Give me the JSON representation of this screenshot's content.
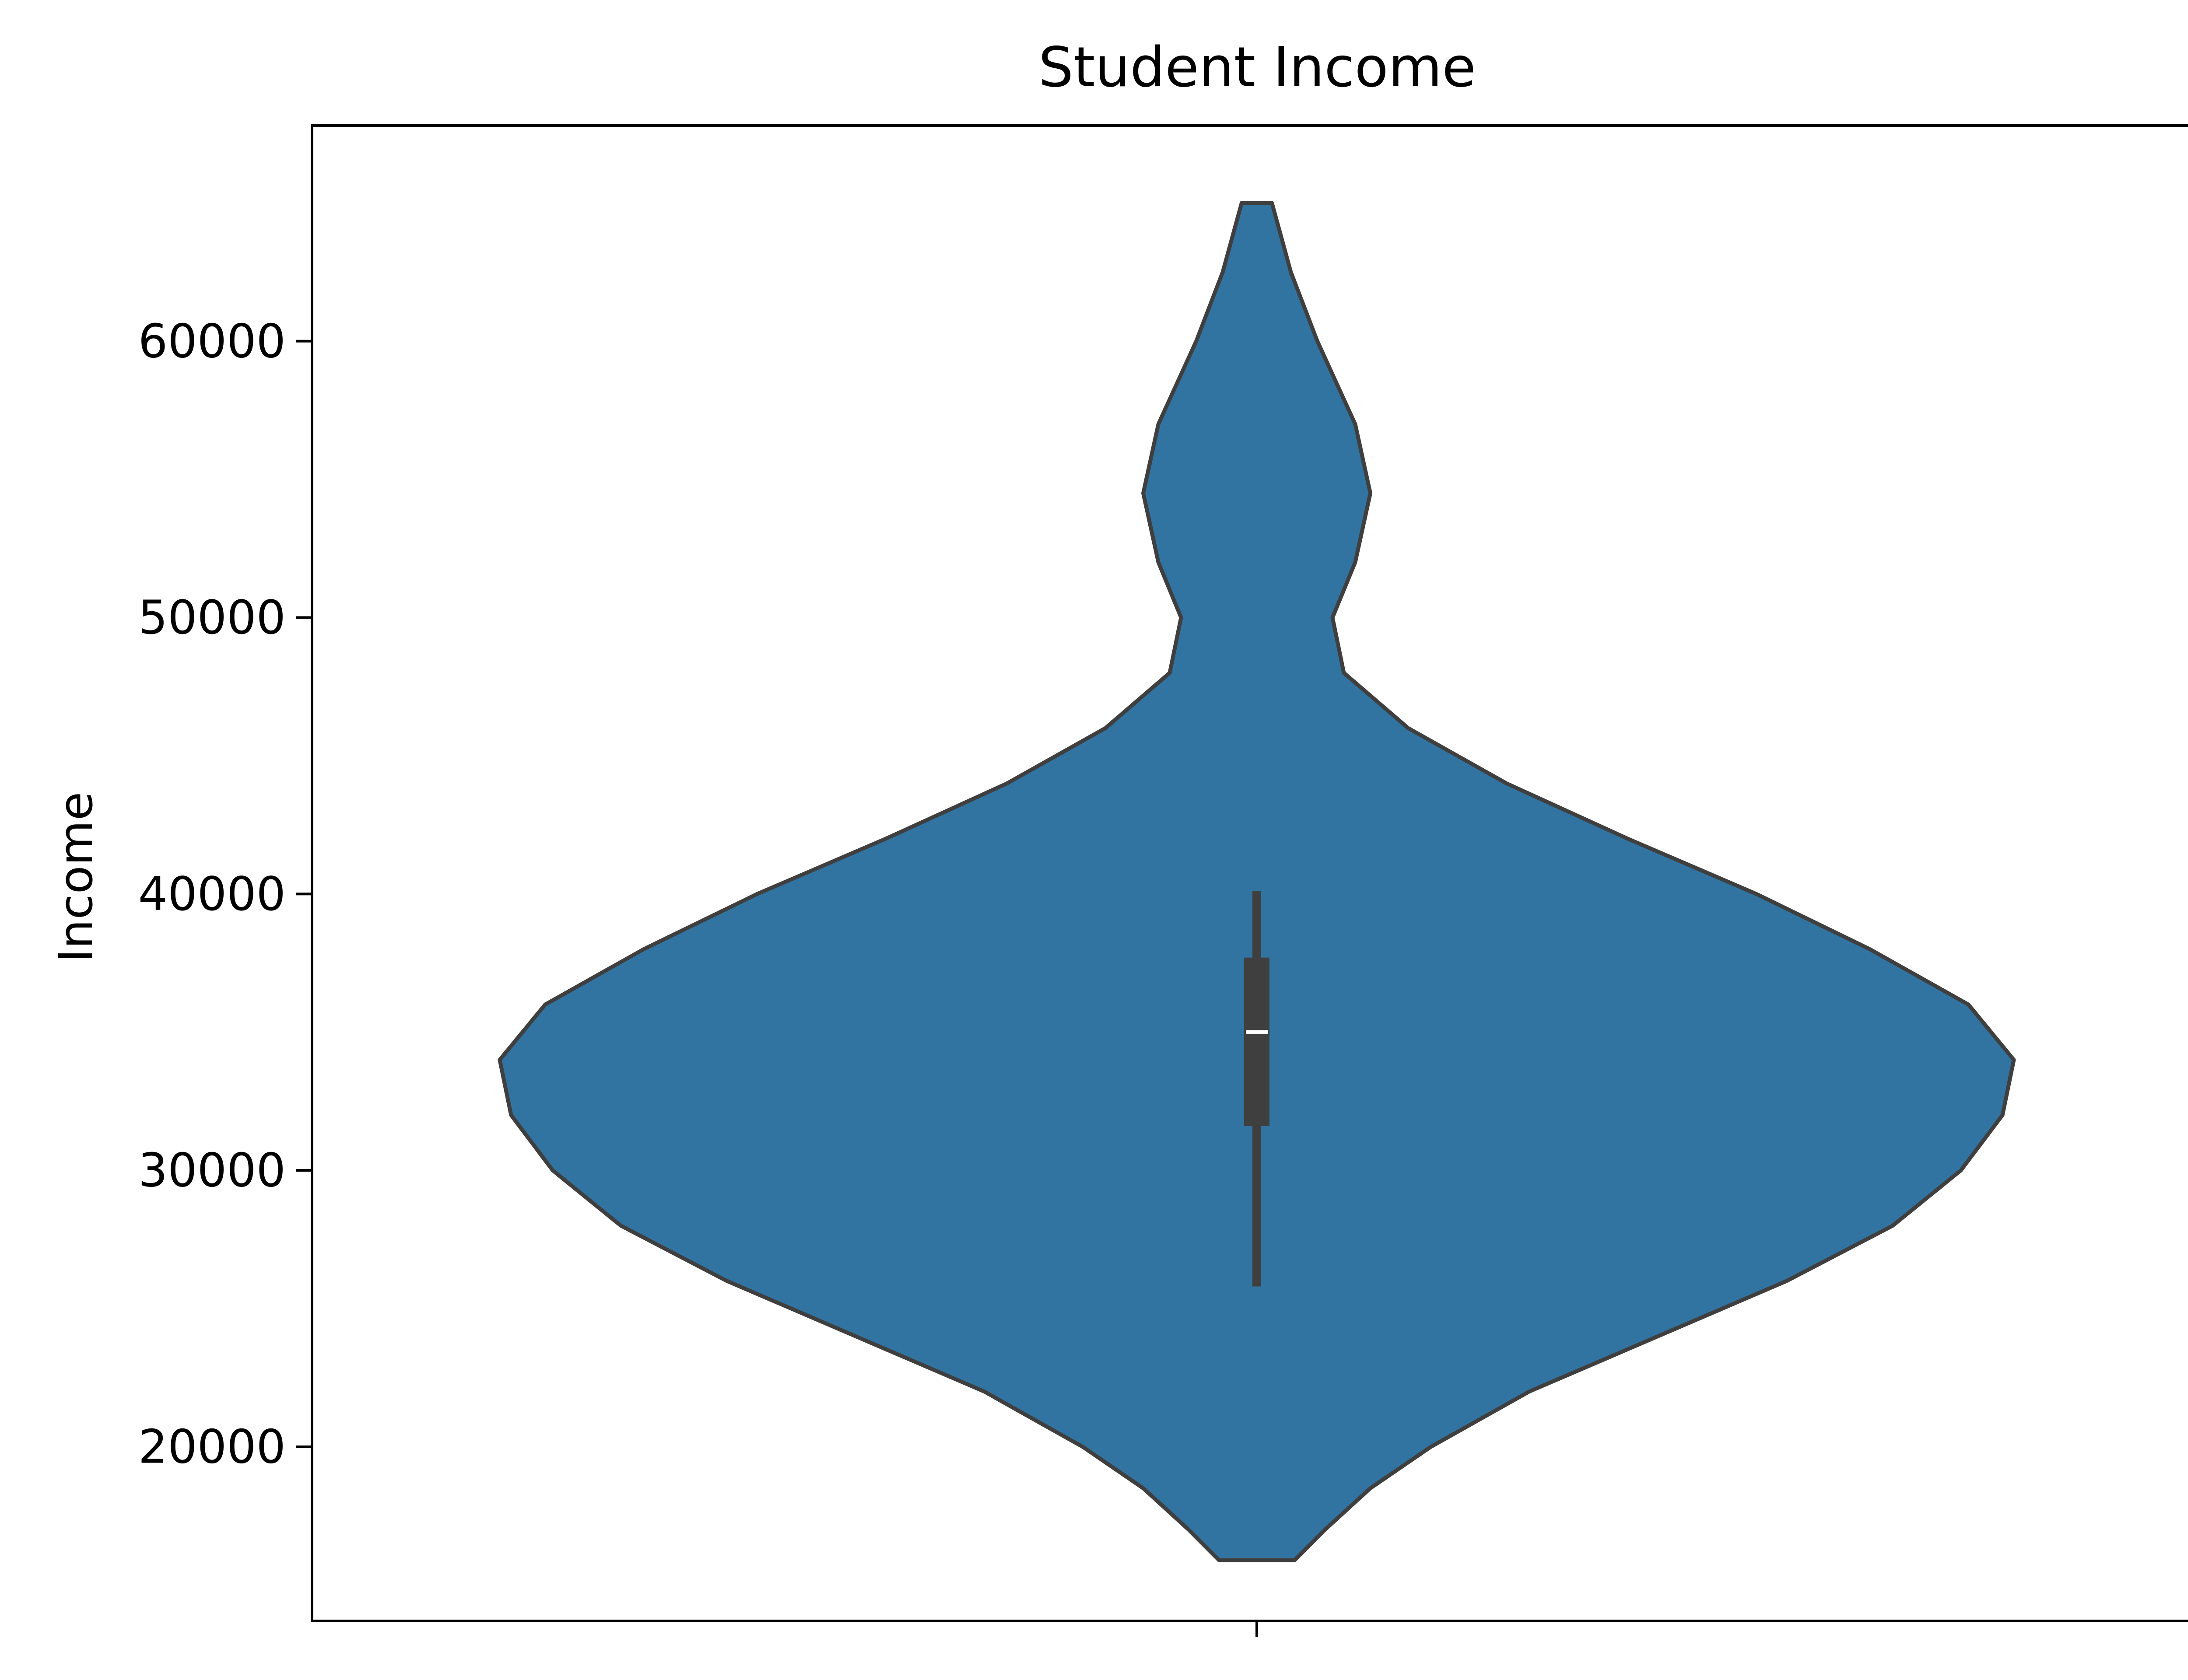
{
  "chart_data": {
    "type": "violin",
    "title": "Student Income",
    "xlabel": "",
    "ylabel": "Income",
    "ylim": [
      13700,
      67800
    ],
    "yticks": [
      20000,
      30000,
      40000,
      50000,
      60000
    ],
    "ytick_labels": [
      "20000",
      "30000",
      "40000",
      "50000",
      "60000"
    ],
    "x_categories": [
      ""
    ],
    "grid": false,
    "colors": {
      "fill": "#3274a1",
      "outline": "#3f3f3f",
      "box": "#3f3f3f",
      "median": "#ffffff",
      "axes": "#000000"
    },
    "density": [
      {
        "y": 15900,
        "w": 0.05
      },
      {
        "y": 17000,
        "w": 0.09
      },
      {
        "y": 18500,
        "w": 0.15
      },
      {
        "y": 20000,
        "w": 0.23
      },
      {
        "y": 22000,
        "w": 0.36
      },
      {
        "y": 24000,
        "w": 0.53
      },
      {
        "y": 26000,
        "w": 0.7
      },
      {
        "y": 28000,
        "w": 0.84
      },
      {
        "y": 30000,
        "w": 0.93
      },
      {
        "y": 32000,
        "w": 0.985
      },
      {
        "y": 34000,
        "w": 1.0
      },
      {
        "y": 36000,
        "w": 0.94
      },
      {
        "y": 38000,
        "w": 0.81
      },
      {
        "y": 40000,
        "w": 0.66
      },
      {
        "y": 42000,
        "w": 0.49
      },
      {
        "y": 44000,
        "w": 0.33
      },
      {
        "y": 46000,
        "w": 0.2
      },
      {
        "y": 48000,
        "w": 0.115
      },
      {
        "y": 50000,
        "w": 0.1
      },
      {
        "y": 52000,
        "w": 0.13
      },
      {
        "y": 54500,
        "w": 0.15
      },
      {
        "y": 57000,
        "w": 0.13
      },
      {
        "y": 60000,
        "w": 0.08
      },
      {
        "y": 62500,
        "w": 0.045
      },
      {
        "y": 65000,
        "w": 0.02
      }
    ],
    "box": {
      "whisker_low": 25800,
      "q1": 31600,
      "median": 35000,
      "q3": 37700,
      "whisker_high": 40100
    }
  }
}
